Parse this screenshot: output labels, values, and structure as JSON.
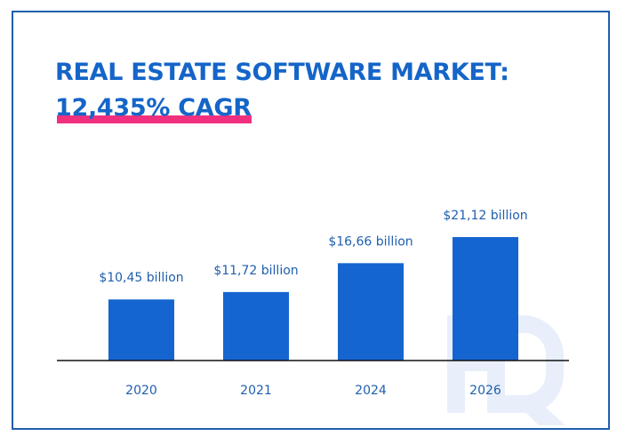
{
  "chart_data": {
    "type": "bar",
    "title": "REAL ESTATE SOFTWARE MARKET:",
    "subtitle": "12,435% CAGR",
    "categories": [
      "2020",
      "2021",
      "2024",
      "2026"
    ],
    "values": [
      10.45,
      11.72,
      16.66,
      21.12
    ],
    "data_labels": [
      "$10,45 billion",
      "$11,72 billion",
      "$16,66 billion",
      "$21,12 billion"
    ],
    "xlabel": "",
    "ylabel": "",
    "ylim": [
      0,
      25
    ],
    "grid": false,
    "legend": "none",
    "bar_color": "#1565d0",
    "highlight_color": "#f0307f"
  },
  "watermark": {
    "text": "HQ"
  }
}
